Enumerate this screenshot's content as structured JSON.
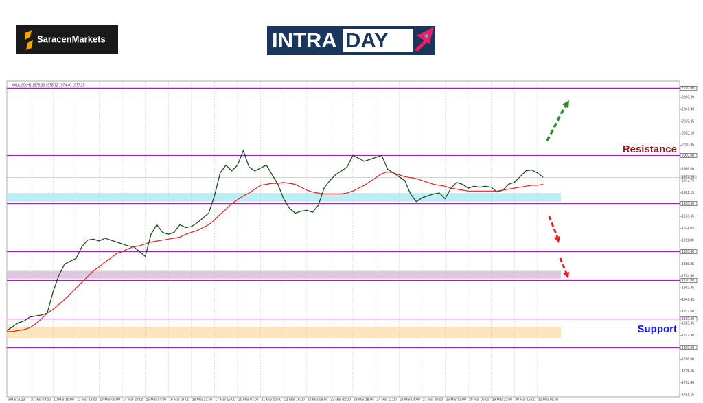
{
  "header": {
    "brand": "SaracenMarkets",
    "banner_left": "INTRA",
    "banner_right": "DAY"
  },
  "chart_data": {
    "type": "line",
    "info": "XAUUSD,H1 1975.33 1978.72 1974.40 1977.25",
    "categories": [
      "9 Mar 2023",
      null,
      null,
      null,
      "10 Mar 03:00",
      null,
      null,
      null,
      "10 Mar 19:00",
      null,
      null,
      null,
      "13 Mar 13:00",
      null,
      null,
      null,
      "14 Mar 06:00",
      null,
      null,
      null,
      "14 Mar 22:00",
      null,
      null,
      null,
      "15 Mar 14:00",
      null,
      null,
      null,
      "16 Mar 07:00",
      null,
      null,
      null,
      "16 Mar 23:00",
      null,
      null,
      null,
      "17 Mar 16:00",
      null,
      null,
      null,
      "20 Mar 07:00",
      null,
      null,
      null,
      "21 Mar 00:00",
      null,
      null,
      null,
      "21 Mar 16:00",
      null,
      null,
      null,
      "22 Mar 09:00",
      null,
      null,
      null,
      "23 Mar 02:00",
      null,
      null,
      null,
      "23 Mar 18:00",
      null,
      null,
      null,
      "24 Mar 11:00",
      null,
      null,
      null,
      "27 Mar 04:00",
      null,
      null,
      null,
      "27 Mar 20:00",
      null,
      null,
      null,
      "28 Mar 13:00",
      null,
      null,
      null,
      "29 Mar 06:00",
      null,
      null,
      null,
      "29 Mar 22:00",
      null,
      null,
      null,
      "30 Mar 15:00",
      null,
      null,
      null,
      "31 Mar 08:00",
      null
    ],
    "series": [
      {
        "name": "XAUUSD",
        "color": "#1d4d1d",
        "values": [
          1818,
          1822,
          1826,
          1828,
          1832,
          1833,
          1834,
          1836,
          1858,
          1875,
          1887,
          1890,
          1893,
          1905,
          1912,
          1913,
          1911,
          1914,
          1912,
          1910,
          1908,
          1906,
          1905,
          1900,
          1895,
          1918,
          1928,
          1920,
          1918,
          1920,
          1928,
          1925,
          1926,
          1930,
          1935,
          1940,
          1958,
          1982,
          1990,
          1984,
          1990,
          2005,
          1988,
          1984,
          1987,
          1990,
          1980,
          1970,
          1955,
          1945,
          1940,
          1942,
          1943,
          1941,
          1948,
          1966,
          1974,
          1980,
          1984,
          1988,
          2000,
          1997,
          1994,
          1996,
          1998,
          2000,
          1986,
          1982,
          1978,
          1974,
          1960,
          1952,
          1956,
          1958,
          1960,
          1961,
          1955,
          1966,
          1972,
          1970,
          1966,
          1968,
          1967,
          1968,
          1967,
          1962,
          1964,
          1970,
          1972,
          1978,
          1984,
          1985,
          1982,
          1977.25
        ]
      },
      {
        "name": "MA",
        "color": "#e02020",
        "values": [
          1817,
          1817,
          1818,
          1819,
          1821,
          1825,
          1830,
          1836,
          1840,
          1845,
          1850,
          1856,
          1862,
          1868,
          1874,
          1880,
          1884,
          1889,
          1893,
          1898,
          1900,
          1903,
          1905,
          1906,
          1908,
          1910,
          1911,
          1912,
          1913,
          1914,
          1915,
          1918,
          1920,
          1922,
          1925,
          1928,
          1933,
          1939,
          1944,
          1950,
          1954,
          1958,
          1961,
          1965,
          1969,
          1970,
          1971,
          1971,
          1972,
          1971,
          1970,
          1967,
          1964,
          1962,
          1961,
          1960,
          1960,
          1960,
          1960,
          1961,
          1963,
          1966,
          1969,
          1973,
          1977,
          1981,
          1983,
          1982,
          1980,
          1978,
          1977,
          1976,
          1974,
          1972,
          1970,
          1969,
          1968,
          1966,
          1965,
          1964,
          1963,
          1963,
          1963,
          1963,
          1963,
          1963,
          1964,
          1965,
          1966,
          1967,
          1968,
          1969,
          1969,
          1970
        ]
      }
    ],
    "ylim": [
      1749,
      2076
    ],
    "yticks": [
      {
        "value": 2070,
        "label": "2070.00"
      },
      {
        "value": 2060.2,
        "label": "2060.20"
      },
      {
        "value": 2047.95,
        "label": "2047.95"
      },
      {
        "value": 2035.35,
        "label": "2035.35"
      },
      {
        "value": 2023.1,
        "label": "2023.10"
      },
      {
        "value": 2010.85,
        "label": "2010.85"
      },
      {
        "value": 2000,
        "label": "2000.00"
      },
      {
        "value": 1986,
        "label": "1986.00"
      },
      {
        "value": 1973.75,
        "label": "1973.75"
      },
      {
        "value": 1961.15,
        "label": "1961.15"
      },
      {
        "value": 1950,
        "label": "1950.00"
      },
      {
        "value": 1936.65,
        "label": "1936.65"
      },
      {
        "value": 1924.05,
        "label": "1924.05"
      },
      {
        "value": 1911.8,
        "label": "1911.80"
      },
      {
        "value": 1900,
        "label": "1900.00"
      },
      {
        "value": 1886.95,
        "label": "1886.95"
      },
      {
        "value": 1874.6,
        "label": "1874.60"
      },
      {
        "value": 1870,
        "label": "1870.00"
      },
      {
        "value": 1862.45,
        "label": "1862.45"
      },
      {
        "value": 1849.85,
        "label": "1849.85"
      },
      {
        "value": 1837.6,
        "label": "1837.60"
      },
      {
        "value": 1830,
        "label": "1830.00"
      },
      {
        "value": 1825.35,
        "label": "1825.35"
      },
      {
        "value": 1812.8,
        "label": "1812.80"
      },
      {
        "value": 1800,
        "label": "1800.00"
      },
      {
        "value": 1788,
        "label": "1788.00"
      },
      {
        "value": 1775.65,
        "label": "1775.65"
      },
      {
        "value": 1763.4,
        "label": "1763.40"
      },
      {
        "value": 1751.15,
        "label": "1751.15"
      }
    ],
    "last_price": {
      "value": 1977.25,
      "label": "1977.25"
    },
    "levels": [
      2070,
      2000,
      1950,
      1900,
      1870,
      1830,
      1800
    ],
    "level_color": "#9c27b0",
    "zones": [
      {
        "low": 1952,
        "high": 1961,
        "color": "#b2ebf2"
      },
      {
        "low": 1872,
        "high": 1880,
        "color": "#d8bfd8"
      },
      {
        "low": 1810,
        "high": 1822,
        "color": "#ffe0b2"
      }
    ],
    "annotations": [
      {
        "text": "Resistance",
        "value": 2006,
        "color": "#8b1a1a"
      },
      {
        "text": "Support",
        "value": 1819,
        "color": "#1515e0"
      }
    ]
  }
}
